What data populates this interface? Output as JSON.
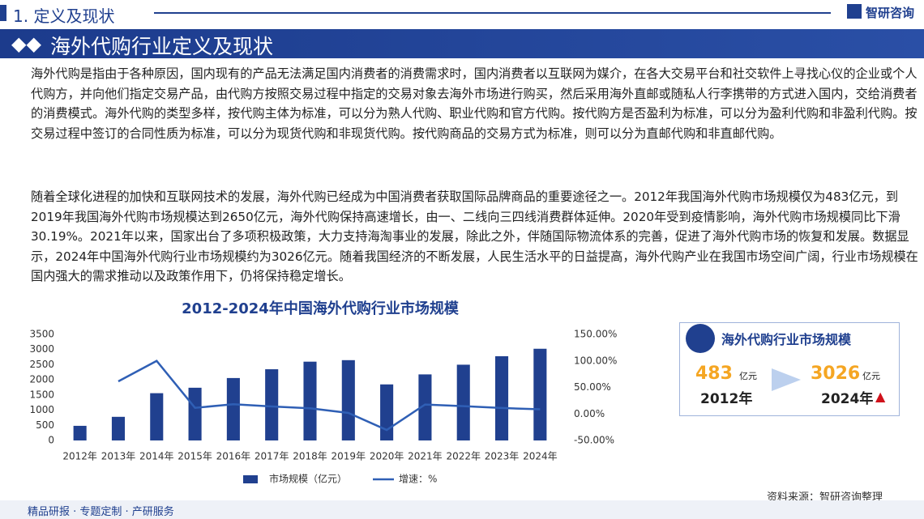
{
  "header": {
    "section": "1. 定义及现状",
    "brand": "智研咨询"
  },
  "banner": {
    "title": "海外代购行业定义及现状"
  },
  "paragraphs": [
    "海外代购是指由于各种原因，国内现有的产品无法满足国内消费者的消费需求时，国内消费者以互联网为媒介，在各大交易平台和社交软件上寻找心仪的企业或个人代购方，并向他们指定交易产品，由代购方按照交易过程中指定的交易对象去海外市场进行购买，然后采用海外直邮或随私人行李携带的方式进入国内，交给消费者的消费模式。海外代购的类型多样，按代购主体为标准，可以分为熟人代购、职业代购和官方代购。按代购方是否盈利为标准，可以分为盈利代购和非盈利代购。按交易过程中签订的合同性质为标准，可以分为现货代购和非现货代购。按代购商品的交易方式为标准，则可以分为直邮代购和非直邮代购。",
    "随着全球化进程的加快和互联网技术的发展，海外代购已经成为中国消费者获取国际品牌商品的重要途径之一。2012年我国海外代购市场规模仅为483亿元，到2019年我国海外代购市场规模达到2650亿元，海外代购保持高速增长，由一、二线向三四线消费群体延伸。2020年受到疫情影响，海外代购市场规模同比下滑30.19%。2021年以来，国家出台了多项积极政策，大力支持海淘事业的发展，除此之外，伴随国际物流体系的完善，促进了海外代购市场的恢复和发展。数据显示，2024年中国海外代购行业市场规模约为3026亿元。随着我国经济的不断发展，人民生活水平的日益提高，海外代购产业在我国市场空间广阔，行业市场规模在国内强大的需求推动以及政策作用下，仍将保持稳定增长。"
  ],
  "chart_data": {
    "type": "bar",
    "title": "2012-2024年中国海外代购行业市场规模",
    "categories": [
      "2012年",
      "2013年",
      "2014年",
      "2015年",
      "2016年",
      "2017年",
      "2018年",
      "2019年",
      "2020年",
      "2021年",
      "2022年",
      "2023年",
      "2024年"
    ],
    "series": [
      {
        "name": "市场规模（亿元）",
        "color": "#20408f",
        "type": "bar",
        "values": [
          483,
          780,
          1560,
          1740,
          2060,
          2350,
          2600,
          2650,
          1850,
          2180,
          2500,
          2780,
          3026
        ]
      },
      {
        "name": "增速：%",
        "color": "#2f5fb5",
        "type": "line",
        "axis": "y2",
        "values": [
          null,
          61.5,
          100,
          11.5,
          18.4,
          14.1,
          10.6,
          1.9,
          -30.19,
          17.8,
          14.7,
          11.2,
          8.8
        ]
      }
    ],
    "ylim": [
      0,
      3500
    ],
    "yticks": [
      0,
      500,
      1000,
      1500,
      2000,
      2500,
      3000,
      3500
    ],
    "y2lim": [
      -50,
      150
    ],
    "y2ticks": [
      {
        "value": -50,
        "label": "-50.00%"
      },
      {
        "value": 0,
        "label": "0.00%"
      },
      {
        "value": 50,
        "label": "50.00%"
      },
      {
        "value": 100,
        "label": "100.00%"
      },
      {
        "value": 150,
        "label": "150.00%"
      }
    ],
    "legend": "bottom"
  },
  "callout": {
    "title": "海外代购行业市场规模",
    "start_value": 483,
    "start_unit": "亿元",
    "start_year": "2012年",
    "end_value": 3026,
    "end_unit": "亿元",
    "end_year": "2024年"
  },
  "source": "资料来源：智研咨询整理",
  "footer": "精品研报 · 专题定制 · 产研服务"
}
